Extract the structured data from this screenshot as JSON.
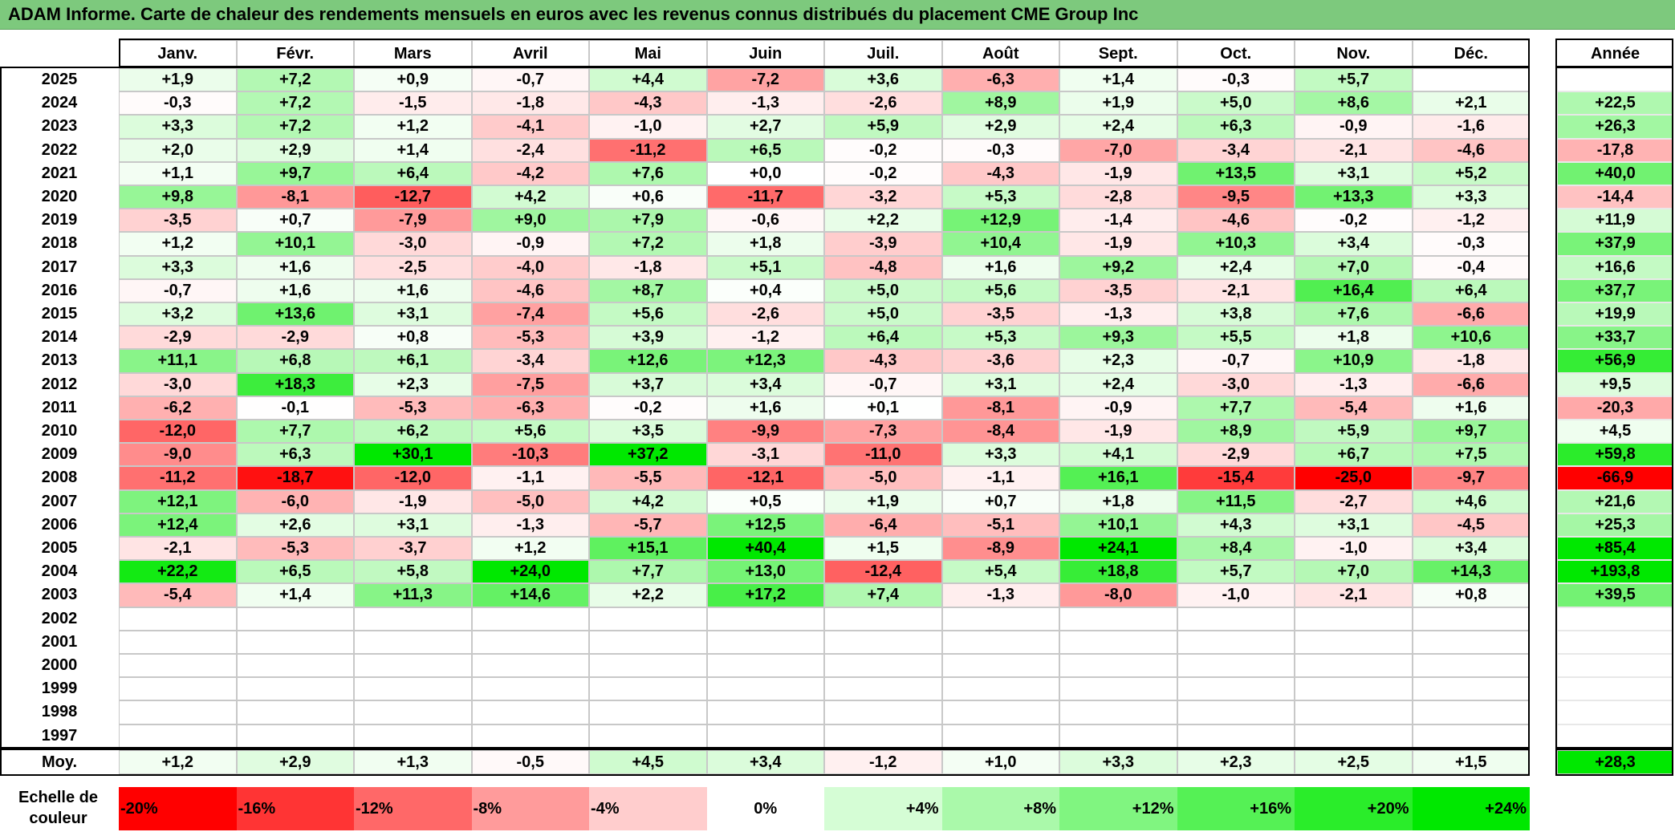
{
  "title": "ADAM Informe. Carte de chaleur des rendements mensuels en euros avec les revenus connus distribués du placement CME Group Inc",
  "chart_data": {
    "type": "heatmap",
    "months": [
      "Janv.",
      "Févr.",
      "Mars",
      "Avril",
      "Mai",
      "Juin",
      "Juil.",
      "Août",
      "Sept.",
      "Oct.",
      "Nov.",
      "Déc."
    ],
    "year_header": "Année",
    "avg_label": "Moy.",
    "rows": [
      {
        "year": "2025",
        "values": [
          1.9,
          7.2,
          0.9,
          -0.7,
          4.4,
          -7.2,
          3.6,
          -6.3,
          1.4,
          -0.3,
          5.7,
          null
        ],
        "annual": null
      },
      {
        "year": "2024",
        "values": [
          -0.3,
          7.2,
          -1.5,
          -1.8,
          -4.3,
          -1.3,
          -2.6,
          8.9,
          1.9,
          5.0,
          8.6,
          2.1
        ],
        "annual": 22.5
      },
      {
        "year": "2023",
        "values": [
          3.3,
          7.2,
          1.2,
          -4.1,
          -1.0,
          2.7,
          5.9,
          2.9,
          2.4,
          6.3,
          -0.9,
          -1.6
        ],
        "annual": 26.3
      },
      {
        "year": "2022",
        "values": [
          2.0,
          2.9,
          1.4,
          -2.4,
          -11.2,
          6.5,
          -0.2,
          -0.3,
          -7.0,
          -3.4,
          -2.1,
          -4.6
        ],
        "annual": -17.8
      },
      {
        "year": "2021",
        "values": [
          1.1,
          9.7,
          6.4,
          -4.2,
          7.6,
          0.0,
          -0.2,
          -4.3,
          -1.9,
          13.5,
          3.1,
          5.2
        ],
        "annual": 40.0
      },
      {
        "year": "2020",
        "values": [
          9.8,
          -8.1,
          -12.7,
          4.2,
          0.6,
          -11.7,
          -3.2,
          5.3,
          -2.8,
          -9.5,
          13.3,
          3.3
        ],
        "annual": -14.4
      },
      {
        "year": "2019",
        "values": [
          -3.5,
          0.7,
          -7.9,
          9.0,
          7.9,
          -0.6,
          2.2,
          12.9,
          -1.4,
          -4.6,
          -0.2,
          -1.2
        ],
        "annual": 11.9
      },
      {
        "year": "2018",
        "values": [
          1.2,
          10.1,
          -3.0,
          -0.9,
          7.2,
          1.8,
          -3.9,
          10.4,
          -1.9,
          10.3,
          3.4,
          -0.3
        ],
        "annual": 37.9
      },
      {
        "year": "2017",
        "values": [
          3.3,
          1.6,
          -2.5,
          -4.0,
          -1.8,
          5.1,
          -4.8,
          1.6,
          9.2,
          2.4,
          7.0,
          -0.4
        ],
        "annual": 16.6
      },
      {
        "year": "2016",
        "values": [
          -0.7,
          1.6,
          1.6,
          -4.6,
          8.7,
          0.4,
          5.0,
          5.6,
          -3.5,
          -2.1,
          16.4,
          6.4
        ],
        "annual": 37.7
      },
      {
        "year": "2015",
        "values": [
          3.2,
          13.6,
          3.1,
          -7.4,
          5.6,
          -2.6,
          5.0,
          -3.5,
          -1.3,
          3.8,
          7.6,
          -6.6
        ],
        "annual": 19.9
      },
      {
        "year": "2014",
        "values": [
          -2.9,
          -2.9,
          0.8,
          -5.3,
          3.9,
          -1.2,
          6.4,
          5.3,
          9.3,
          5.5,
          1.8,
          10.6
        ],
        "annual": 33.7
      },
      {
        "year": "2013",
        "values": [
          11.1,
          6.8,
          6.1,
          -3.4,
          12.6,
          12.3,
          -4.3,
          -3.6,
          2.3,
          -0.7,
          10.9,
          -1.8
        ],
        "annual": 56.9
      },
      {
        "year": "2012",
        "values": [
          -3.0,
          18.3,
          2.3,
          -7.5,
          3.7,
          3.4,
          -0.7,
          3.1,
          2.4,
          -3.0,
          -1.3,
          -6.6
        ],
        "annual": 9.5
      },
      {
        "year": "2011",
        "values": [
          -6.2,
          -0.1,
          -5.3,
          -6.3,
          -0.2,
          1.6,
          0.1,
          -8.1,
          -0.9,
          7.7,
          -5.4,
          1.6
        ],
        "annual": -20.3
      },
      {
        "year": "2010",
        "values": [
          -12.0,
          7.7,
          6.2,
          5.6,
          3.5,
          -9.9,
          -7.3,
          -8.4,
          -1.9,
          8.9,
          5.9,
          9.7
        ],
        "annual": 4.5
      },
      {
        "year": "2009",
        "values": [
          -9.0,
          6.3,
          30.1,
          -10.3,
          37.2,
          -3.1,
          -11.0,
          3.3,
          4.1,
          -2.9,
          6.7,
          7.5
        ],
        "annual": 59.8
      },
      {
        "year": "2008",
        "values": [
          -11.2,
          -18.7,
          -12.0,
          -1.1,
          -5.5,
          -12.1,
          -5.0,
          -1.1,
          16.1,
          -15.4,
          -25.0,
          -9.7
        ],
        "annual": -66.9
      },
      {
        "year": "2007",
        "values": [
          12.1,
          -6.0,
          -1.9,
          -5.0,
          4.2,
          0.5,
          1.9,
          0.7,
          1.8,
          11.5,
          -2.7,
          4.6
        ],
        "annual": 21.6
      },
      {
        "year": "2006",
        "values": [
          12.4,
          2.6,
          3.1,
          -1.3,
          -5.7,
          12.5,
          -6.4,
          -5.1,
          10.1,
          4.3,
          3.1,
          -4.5
        ],
        "annual": 25.3
      },
      {
        "year": "2005",
        "values": [
          -2.1,
          -5.3,
          -3.7,
          1.2,
          15.1,
          40.4,
          1.5,
          -8.9,
          24.1,
          8.4,
          -1.0,
          3.4
        ],
        "annual": 85.4
      },
      {
        "year": "2004",
        "values": [
          22.2,
          6.5,
          5.8,
          24.0,
          7.7,
          13.0,
          -12.4,
          5.4,
          18.8,
          5.7,
          7.0,
          14.3
        ],
        "annual": 193.8
      },
      {
        "year": "2003",
        "values": [
          -5.4,
          1.4,
          11.3,
          14.6,
          2.2,
          17.2,
          7.4,
          -1.3,
          -8.0,
          -1.0,
          -2.1,
          0.8
        ],
        "annual": 39.5
      },
      {
        "year": "2002",
        "values": [
          null,
          null,
          null,
          null,
          null,
          null,
          null,
          null,
          null,
          null,
          null,
          null
        ],
        "annual": null
      },
      {
        "year": "2001",
        "values": [
          null,
          null,
          null,
          null,
          null,
          null,
          null,
          null,
          null,
          null,
          null,
          null
        ],
        "annual": null
      },
      {
        "year": "2000",
        "values": [
          null,
          null,
          null,
          null,
          null,
          null,
          null,
          null,
          null,
          null,
          null,
          null
        ],
        "annual": null
      },
      {
        "year": "1999",
        "values": [
          null,
          null,
          null,
          null,
          null,
          null,
          null,
          null,
          null,
          null,
          null,
          null
        ],
        "annual": null
      },
      {
        "year": "1998",
        "values": [
          null,
          null,
          null,
          null,
          null,
          null,
          null,
          null,
          null,
          null,
          null,
          null
        ],
        "annual": null
      },
      {
        "year": "1997",
        "values": [
          null,
          null,
          null,
          null,
          null,
          null,
          null,
          null,
          null,
          null,
          null,
          null
        ],
        "annual": null
      }
    ],
    "averages": [
      1.2,
      2.9,
      1.3,
      -0.5,
      4.5,
      3.4,
      -1.2,
      1.0,
      3.3,
      2.3,
      2.5,
      1.5
    ],
    "average_annual": 28.3,
    "scale": {
      "label_line1": "Echelle de",
      "label_line2": "couleur",
      "stops": [
        {
          "label": "-20%",
          "value": -20,
          "color": "#ff0000"
        },
        {
          "label": "-16%",
          "value": -16,
          "color": "#ff3434"
        },
        {
          "label": "-12%",
          "value": -12,
          "color": "#ff6868"
        },
        {
          "label": "-8%",
          "value": -8,
          "color": "#ff9b9b"
        },
        {
          "label": "-4%",
          "value": -4,
          "color": "#ffcdcd"
        },
        {
          "label": "0%",
          "value": 0,
          "color": "#ffffff"
        },
        {
          "label": "+4%",
          "value": 4,
          "color": "#d5fdd5"
        },
        {
          "label": "+8%",
          "value": 8,
          "color": "#aaf9aa"
        },
        {
          "label": "+12%",
          "value": 12,
          "color": "#80f580"
        },
        {
          "label": "+16%",
          "value": 16,
          "color": "#55f155"
        },
        {
          "label": "+20%",
          "value": 20,
          "color": "#2aed2a"
        },
        {
          "label": "+24%",
          "value": 24,
          "color": "#00e800"
        }
      ]
    }
  }
}
